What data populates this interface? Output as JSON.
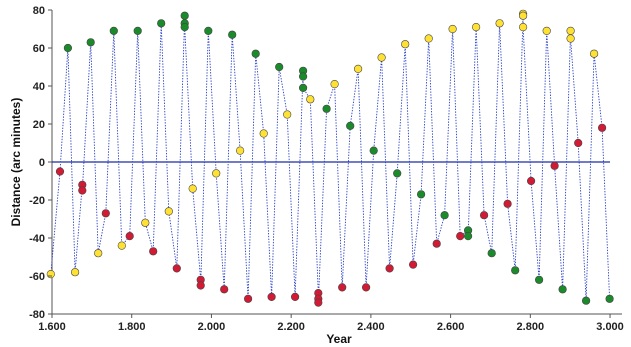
{
  "chart_data": {
    "type": "scatter",
    "title": "",
    "xlabel": "Year",
    "ylabel": "Distance (arc minutes)",
    "xlim": [
      1.6,
      3.03
    ],
    "ylim": [
      -80,
      80
    ],
    "x_ticks": [
      "1.600",
      "1.800",
      "2.000",
      "2.200",
      "2.400",
      "2.600",
      "2.800",
      "3.000"
    ],
    "y_ticks": [
      "80",
      "60",
      "40",
      "20",
      "0",
      "-20",
      "-40",
      "-60",
      "-80"
    ],
    "grid": false,
    "legend": "none",
    "zero_line": true,
    "colors": {
      "green": "#1a8a2a",
      "yellow": "#ffe133",
      "red": "#d31a35",
      "trace": "#2a3fc8",
      "zero_line": "#1c2fa8"
    },
    "points": [
      {
        "x": 1.597,
        "y": -59,
        "c": "yellow"
      },
      {
        "x": 1.62,
        "y": -5,
        "c": "red"
      },
      {
        "x": 1.64,
        "y": 60,
        "c": "green"
      },
      {
        "x": 1.658,
        "y": -58,
        "c": "yellow"
      },
      {
        "x": 1.676,
        "y": -12,
        "c": "red"
      },
      {
        "x": 1.676,
        "y": -15,
        "c": "red"
      },
      {
        "x": 1.697,
        "y": 63,
        "c": "green"
      },
      {
        "x": 1.716,
        "y": -48,
        "c": "yellow"
      },
      {
        "x": 1.735,
        "y": -27,
        "c": "red"
      },
      {
        "x": 1.755,
        "y": 69,
        "c": "green"
      },
      {
        "x": 1.775,
        "y": -44,
        "c": "yellow"
      },
      {
        "x": 1.795,
        "y": -39,
        "c": "red"
      },
      {
        "x": 1.815,
        "y": 69,
        "c": "green"
      },
      {
        "x": 1.834,
        "y": -32,
        "c": "yellow"
      },
      {
        "x": 1.854,
        "y": -47,
        "c": "red"
      },
      {
        "x": 1.874,
        "y": 73,
        "c": "green"
      },
      {
        "x": 1.893,
        "y": -26,
        "c": "yellow"
      },
      {
        "x": 1.913,
        "y": -56,
        "c": "red"
      },
      {
        "x": 1.933,
        "y": 77,
        "c": "green"
      },
      {
        "x": 1.933,
        "y": 73,
        "c": "green"
      },
      {
        "x": 1.933,
        "y": 71,
        "c": "green"
      },
      {
        "x": 1.953,
        "y": -14,
        "c": "yellow"
      },
      {
        "x": 1.973,
        "y": -62,
        "c": "red"
      },
      {
        "x": 1.973,
        "y": -65,
        "c": "red"
      },
      {
        "x": 1.992,
        "y": 69,
        "c": "green"
      },
      {
        "x": 2.012,
        "y": -6,
        "c": "yellow"
      },
      {
        "x": 2.032,
        "y": -67,
        "c": "red"
      },
      {
        "x": 2.052,
        "y": 67,
        "c": "green"
      },
      {
        "x": 2.072,
        "y": 6,
        "c": "yellow"
      },
      {
        "x": 2.092,
        "y": -72,
        "c": "red"
      },
      {
        "x": 2.111,
        "y": 57,
        "c": "green"
      },
      {
        "x": 2.131,
        "y": 15,
        "c": "yellow"
      },
      {
        "x": 2.151,
        "y": -71,
        "c": "red"
      },
      {
        "x": 2.17,
        "y": 50,
        "c": "green"
      },
      {
        "x": 2.19,
        "y": 25,
        "c": "yellow"
      },
      {
        "x": 2.21,
        "y": -71,
        "c": "red"
      },
      {
        "x": 2.23,
        "y": 48,
        "c": "green"
      },
      {
        "x": 2.23,
        "y": 45,
        "c": "green"
      },
      {
        "x": 2.23,
        "y": 39,
        "c": "green"
      },
      {
        "x": 2.248,
        "y": 33,
        "c": "yellow"
      },
      {
        "x": 2.268,
        "y": -69,
        "c": "red"
      },
      {
        "x": 2.268,
        "y": -72,
        "c": "red"
      },
      {
        "x": 2.268,
        "y": -74,
        "c": "red"
      },
      {
        "x": 2.289,
        "y": 28,
        "c": "green"
      },
      {
        "x": 2.309,
        "y": 41,
        "c": "yellow"
      },
      {
        "x": 2.328,
        "y": -66,
        "c": "red"
      },
      {
        "x": 2.348,
        "y": 19,
        "c": "green"
      },
      {
        "x": 2.368,
        "y": 49,
        "c": "yellow"
      },
      {
        "x": 2.388,
        "y": -66,
        "c": "red"
      },
      {
        "x": 2.407,
        "y": 6,
        "c": "green"
      },
      {
        "x": 2.427,
        "y": 55,
        "c": "yellow"
      },
      {
        "x": 2.447,
        "y": -56,
        "c": "red"
      },
      {
        "x": 2.466,
        "y": -6,
        "c": "green"
      },
      {
        "x": 2.486,
        "y": 62,
        "c": "yellow"
      },
      {
        "x": 2.506,
        "y": -54,
        "c": "red"
      },
      {
        "x": 2.526,
        "y": -17,
        "c": "green"
      },
      {
        "x": 2.545,
        "y": 65,
        "c": "yellow"
      },
      {
        "x": 2.565,
        "y": -43,
        "c": "red"
      },
      {
        "x": 2.585,
        "y": -28,
        "c": "green"
      },
      {
        "x": 2.605,
        "y": 70,
        "c": "yellow"
      },
      {
        "x": 2.624,
        "y": -39,
        "c": "red"
      },
      {
        "x": 2.644,
        "y": -36,
        "c": "green"
      },
      {
        "x": 2.644,
        "y": -39,
        "c": "green"
      },
      {
        "x": 2.664,
        "y": 71,
        "c": "yellow"
      },
      {
        "x": 2.684,
        "y": -28,
        "c": "red"
      },
      {
        "x": 2.703,
        "y": -48,
        "c": "green"
      },
      {
        "x": 2.723,
        "y": 73,
        "c": "yellow"
      },
      {
        "x": 2.743,
        "y": -22,
        "c": "red"
      },
      {
        "x": 2.762,
        "y": -57,
        "c": "green"
      },
      {
        "x": 2.782,
        "y": 78,
        "c": "yellow"
      },
      {
        "x": 2.782,
        "y": 77,
        "c": "yellow"
      },
      {
        "x": 2.782,
        "y": 71,
        "c": "yellow"
      },
      {
        "x": 2.802,
        "y": -10,
        "c": "red"
      },
      {
        "x": 2.822,
        "y": -62,
        "c": "green"
      },
      {
        "x": 2.841,
        "y": 69,
        "c": "yellow"
      },
      {
        "x": 2.861,
        "y": -2,
        "c": "red"
      },
      {
        "x": 2.881,
        "y": -67,
        "c": "green"
      },
      {
        "x": 2.901,
        "y": 69,
        "c": "yellow"
      },
      {
        "x": 2.901,
        "y": 65,
        "c": "yellow"
      },
      {
        "x": 2.92,
        "y": 10,
        "c": "red"
      },
      {
        "x": 2.94,
        "y": -73,
        "c": "green"
      },
      {
        "x": 2.96,
        "y": 57,
        "c": "yellow"
      },
      {
        "x": 2.98,
        "y": 18,
        "c": "red"
      },
      {
        "x": 2.999,
        "y": -72,
        "c": "green"
      }
    ]
  }
}
